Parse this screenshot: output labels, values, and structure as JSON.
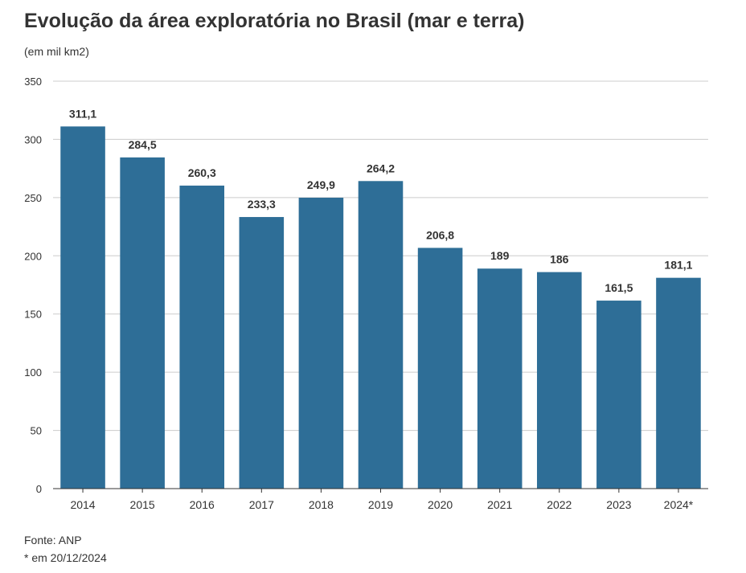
{
  "title": "Evolução da área exploratória no Brasil (mar e terra)",
  "subtitle": "(em mil km2)",
  "notes": {
    "source": "Fonte: ANP",
    "date_note": "* em 20/12/2024"
  },
  "colors": {
    "bar": "#2e6e97",
    "grid": "#cccccc",
    "axis": "#333333",
    "label": "#333333"
  },
  "chart_data": {
    "type": "bar",
    "categories": [
      "2014",
      "2015",
      "2016",
      "2017",
      "2018",
      "2019",
      "2020",
      "2021",
      "2022",
      "2023",
      "2024*"
    ],
    "values": [
      311.1,
      284.5,
      260.3,
      233.3,
      249.9,
      264.2,
      206.8,
      189,
      186,
      161.5,
      181.1
    ],
    "value_labels": [
      "311,1",
      "284,5",
      "260,3",
      "233,3",
      "249,9",
      "264,2",
      "206,8",
      "189",
      "186",
      "161,5",
      "181,1"
    ],
    "y_ticks": [
      0,
      50,
      100,
      150,
      200,
      250,
      300,
      350
    ],
    "ylim": [
      0,
      350
    ],
    "grid": true,
    "xlabel": "",
    "ylabel": ""
  }
}
